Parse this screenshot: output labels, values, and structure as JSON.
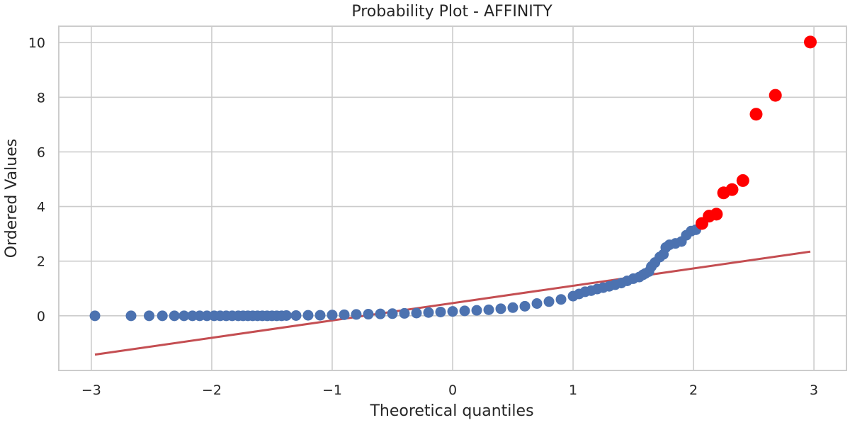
{
  "chart_data": {
    "type": "scatter",
    "title": "Probability Plot - AFFINITY",
    "xlabel": "Theoretical quantiles",
    "ylabel": "Ordered Values",
    "xlim": [
      -3.27,
      3.27
    ],
    "ylim": [
      -2.0,
      10.6
    ],
    "xticks": [
      -3,
      -2,
      -1,
      0,
      1,
      2,
      3
    ],
    "xtick_labels": [
      "−3",
      "−2",
      "−1",
      "0",
      "1",
      "2",
      "3"
    ],
    "yticks": [
      0,
      2,
      4,
      6,
      8,
      10
    ],
    "ytick_labels": [
      "0",
      "2",
      "4",
      "6",
      "8",
      "10"
    ],
    "grid": true,
    "legend": "none",
    "series": [
      {
        "role": "ordered values",
        "color": "#4c72b0",
        "points": [
          [
            -2.97,
            0.0
          ],
          [
            -2.67,
            0.0
          ],
          [
            -2.52,
            0.0
          ],
          [
            -2.41,
            0.0
          ],
          [
            -2.31,
            0.0
          ],
          [
            -2.23,
            0.0
          ],
          [
            -2.16,
            0.0
          ],
          [
            -2.1,
            0.0
          ],
          [
            -2.04,
            0.0
          ],
          [
            -1.98,
            0.0
          ],
          [
            -1.93,
            0.0
          ],
          [
            -1.88,
            0.0
          ],
          [
            -1.83,
            0.0
          ],
          [
            -1.78,
            0.0
          ],
          [
            -1.74,
            0.0
          ],
          [
            -1.7,
            0.0
          ],
          [
            -1.66,
            0.0
          ],
          [
            -1.62,
            0.0
          ],
          [
            -1.58,
            0.0
          ],
          [
            -1.54,
            0.0
          ],
          [
            -1.5,
            0.0
          ],
          [
            -1.46,
            0.0
          ],
          [
            -1.42,
            0.0
          ],
          [
            -1.38,
            0.01
          ],
          [
            -1.3,
            0.01
          ],
          [
            -1.2,
            0.02
          ],
          [
            -1.1,
            0.02
          ],
          [
            -1.0,
            0.03
          ],
          [
            -0.9,
            0.04
          ],
          [
            -0.8,
            0.05
          ],
          [
            -0.7,
            0.06
          ],
          [
            -0.6,
            0.07
          ],
          [
            -0.5,
            0.08
          ],
          [
            -0.4,
            0.09
          ],
          [
            -0.3,
            0.1
          ],
          [
            -0.2,
            0.12
          ],
          [
            -0.1,
            0.14
          ],
          [
            0.0,
            0.16
          ],
          [
            0.1,
            0.18
          ],
          [
            0.2,
            0.2
          ],
          [
            0.3,
            0.22
          ],
          [
            0.4,
            0.26
          ],
          [
            0.5,
            0.3
          ],
          [
            0.6,
            0.35
          ],
          [
            0.7,
            0.45
          ],
          [
            0.8,
            0.52
          ],
          [
            0.9,
            0.6
          ],
          [
            1.0,
            0.72
          ],
          [
            1.05,
            0.8
          ],
          [
            1.1,
            0.88
          ],
          [
            1.15,
            0.92
          ],
          [
            1.2,
            0.98
          ],
          [
            1.25,
            1.03
          ],
          [
            1.3,
            1.08
          ],
          [
            1.35,
            1.14
          ],
          [
            1.4,
            1.2
          ],
          [
            1.45,
            1.28
          ],
          [
            1.5,
            1.36
          ],
          [
            1.55,
            1.42
          ],
          [
            1.58,
            1.5
          ],
          [
            1.6,
            1.55
          ],
          [
            1.63,
            1.62
          ],
          [
            1.65,
            1.8
          ],
          [
            1.68,
            1.95
          ],
          [
            1.72,
            2.15
          ],
          [
            1.75,
            2.25
          ],
          [
            1.77,
            2.5
          ],
          [
            1.8,
            2.6
          ],
          [
            1.85,
            2.65
          ],
          [
            1.9,
            2.72
          ],
          [
            1.94,
            2.95
          ],
          [
            1.98,
            3.1
          ],
          [
            2.02,
            3.15
          ]
        ]
      },
      {
        "role": "outliers",
        "color": "#ff0000",
        "points": [
          [
            2.07,
            3.38
          ],
          [
            2.13,
            3.65
          ],
          [
            2.19,
            3.72
          ],
          [
            2.25,
            4.5
          ],
          [
            2.32,
            4.62
          ],
          [
            2.41,
            4.95
          ],
          [
            2.52,
            7.38
          ],
          [
            2.68,
            8.07
          ],
          [
            2.97,
            10.02
          ]
        ]
      }
    ],
    "fit_line": {
      "color": "#c44e52",
      "from": [
        -2.97,
        -1.42
      ],
      "to": [
        2.97,
        2.35
      ]
    }
  }
}
